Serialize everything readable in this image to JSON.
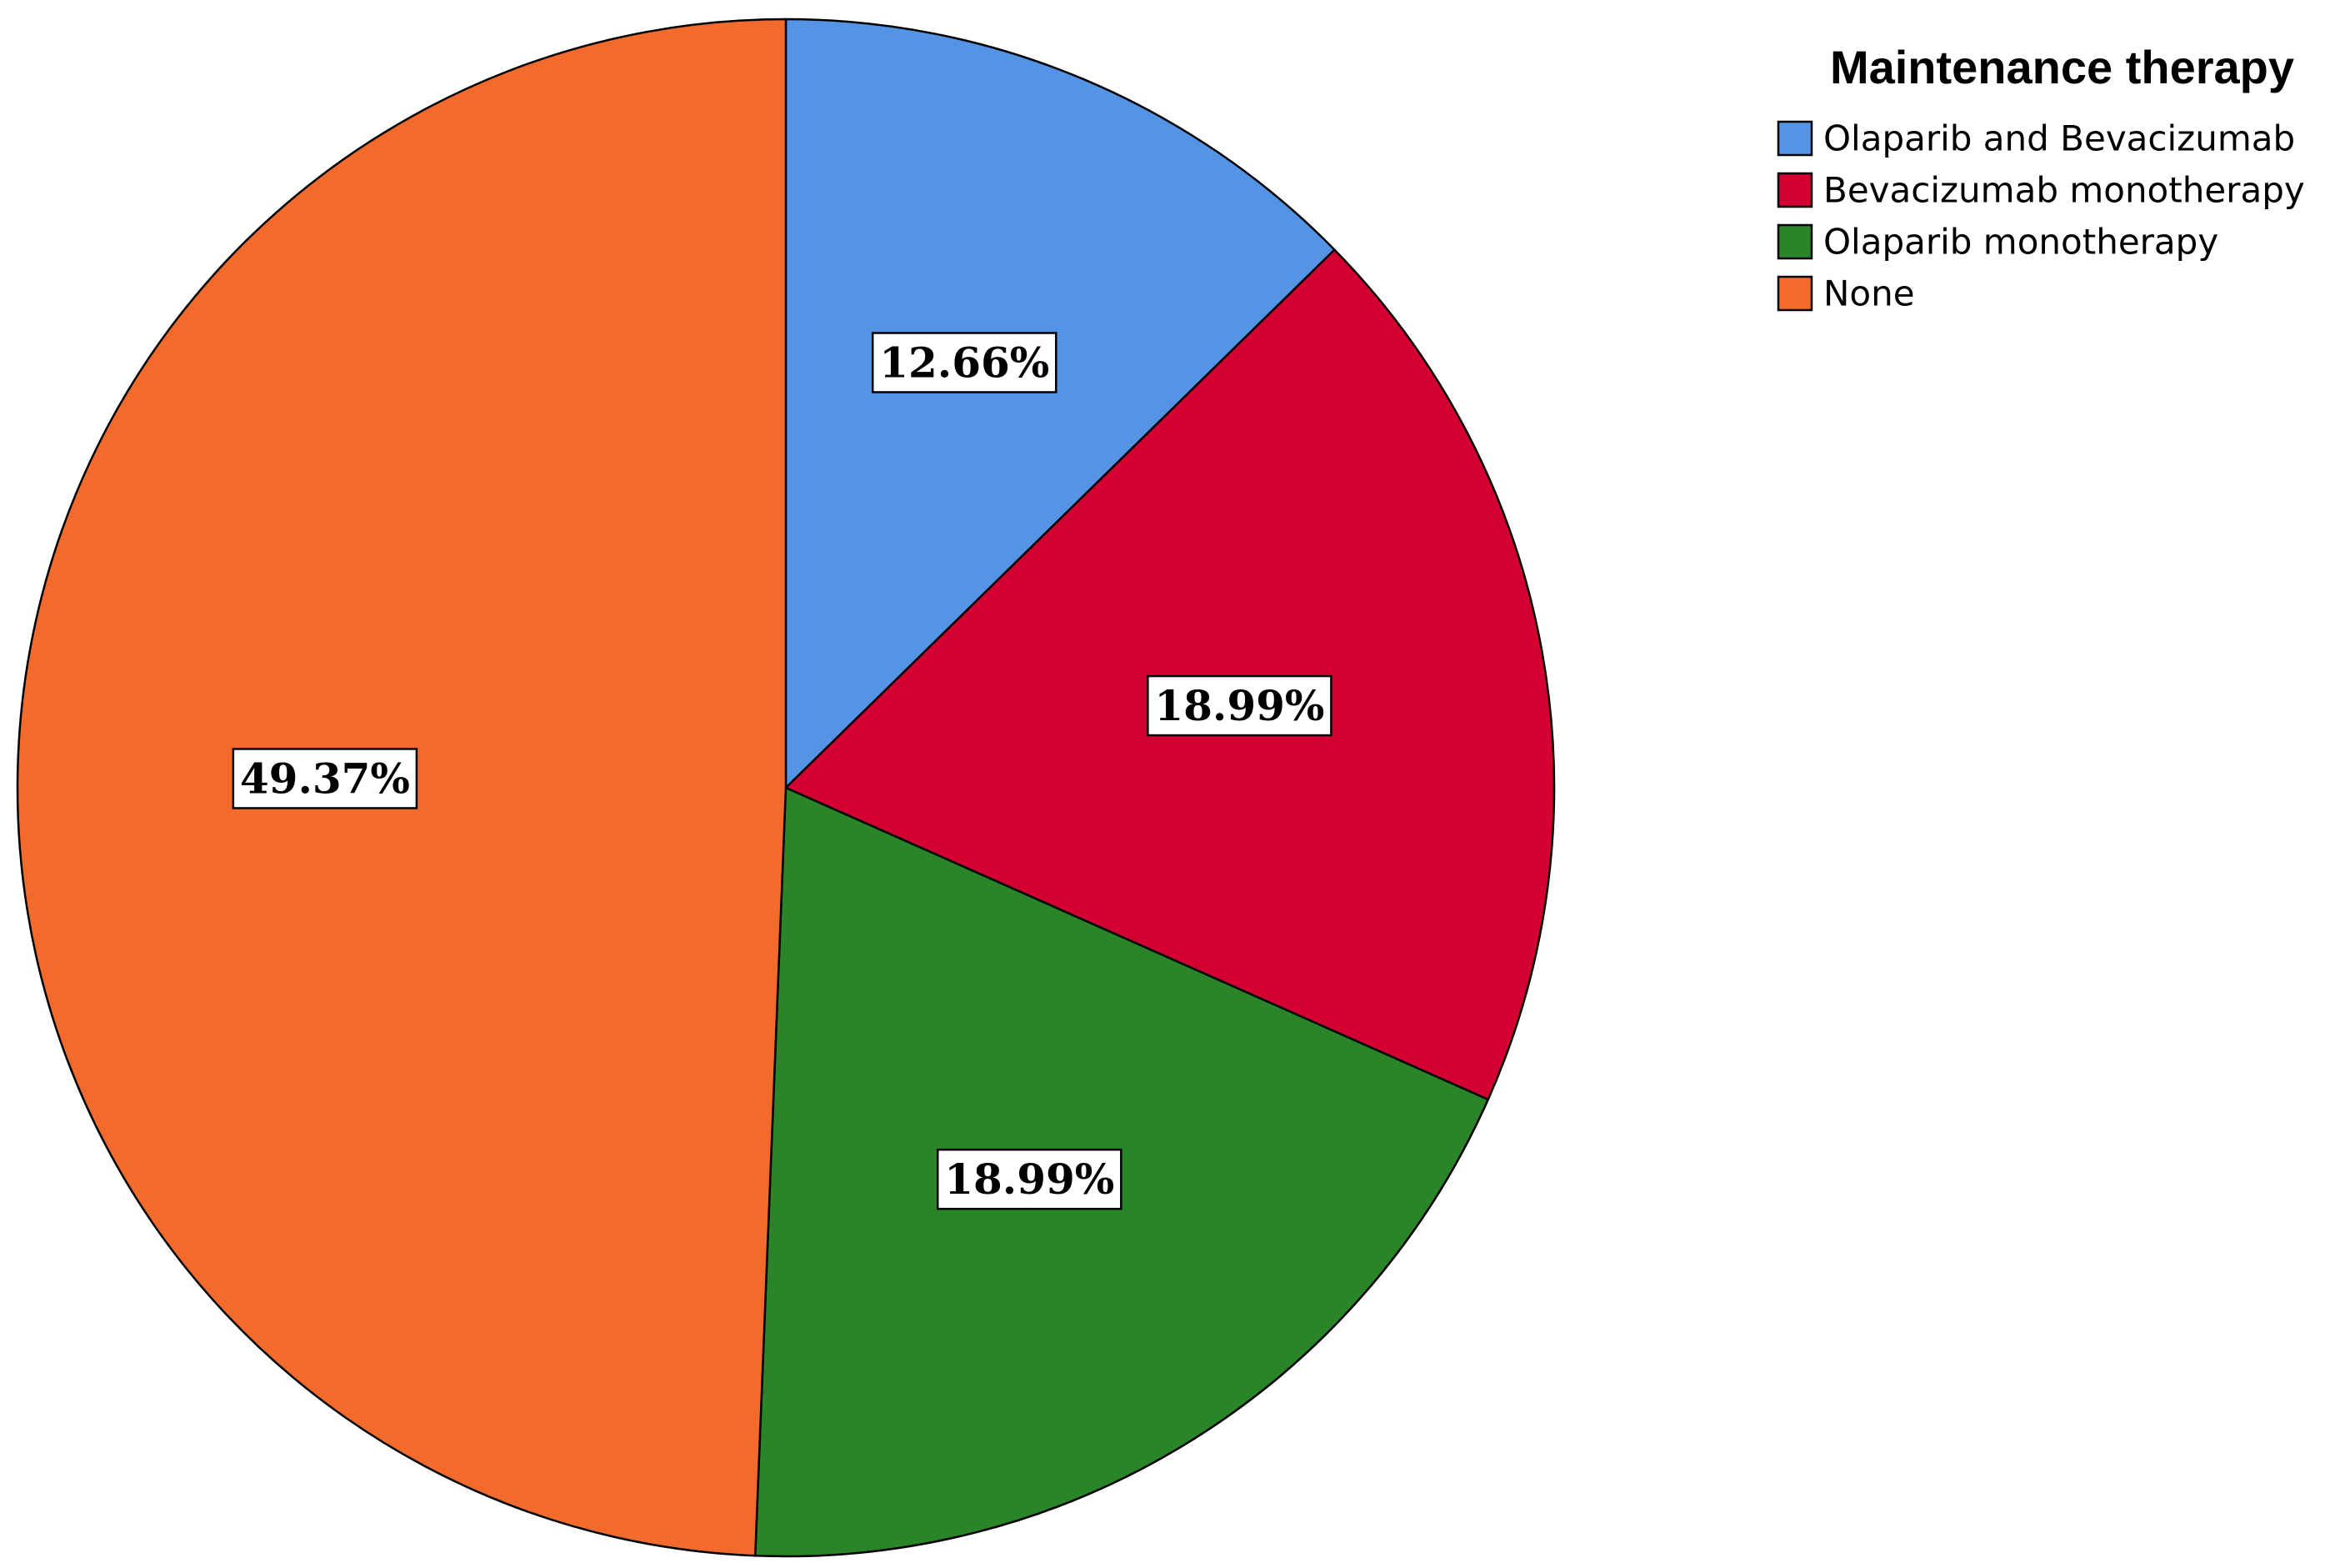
{
  "chart_data": {
    "type": "pie",
    "legend_title": "Maintenance therapy",
    "legend_placement": "top-right",
    "categories": [
      "Olaparib and Bevacizumab",
      "Bevacizumab monotherapy",
      "Olaparib monotherapy",
      "None"
    ],
    "values": [
      12.66,
      18.99,
      18.99,
      49.37
    ],
    "labels": [
      "12.66%",
      "18.99%",
      "18.99%",
      "49.37%"
    ],
    "colors": [
      "#5594E4",
      "#D50032",
      "#2A8428",
      "#F26A2C"
    ]
  }
}
